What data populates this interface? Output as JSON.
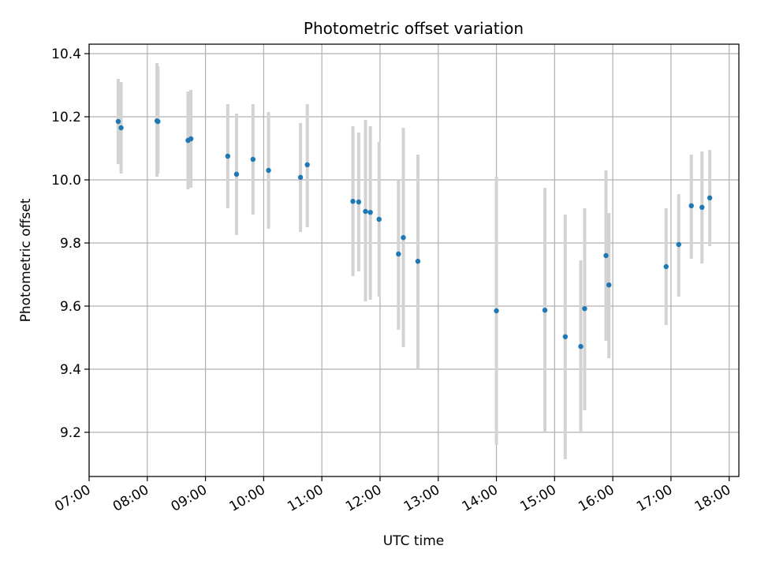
{
  "chart_data": {
    "type": "scatter",
    "title": "Photometric offset variation",
    "xlabel": "UTC time",
    "ylabel": "Photometric offset",
    "xlim": [
      "07:00",
      "18:10"
    ],
    "ylim": [
      9.06,
      10.43
    ],
    "xticks": [
      "07:00",
      "08:00",
      "09:00",
      "10:00",
      "11:00",
      "12:00",
      "13:00",
      "14:00",
      "15:00",
      "16:00",
      "17:00",
      "18:00"
    ],
    "yticks": [
      "9.2",
      "9.4",
      "9.6",
      "9.8",
      "10.0",
      "10.2",
      "10.4"
    ],
    "grid": true,
    "colors": {
      "point": "#1f77b4",
      "errorbar": "#d3d3d3",
      "grid": "#b0b0b0"
    },
    "series": [
      {
        "points": [
          {
            "t": "07:30",
            "y": 10.185,
            "lo": 10.05,
            "hi": 10.32
          },
          {
            "t": "07:33",
            "y": 10.165,
            "lo": 10.02,
            "hi": 10.31
          },
          {
            "t": "08:10",
            "y": 10.187,
            "lo": 10.01,
            "hi": 10.37
          },
          {
            "t": "08:11",
            "y": 10.185,
            "lo": 10.02,
            "hi": 10.36
          },
          {
            "t": "08:42",
            "y": 10.125,
            "lo": 9.97,
            "hi": 10.28
          },
          {
            "t": "08:45",
            "y": 10.13,
            "lo": 9.975,
            "hi": 10.285
          },
          {
            "t": "09:23",
            "y": 10.075,
            "lo": 9.91,
            "hi": 10.24
          },
          {
            "t": "09:32",
            "y": 10.018,
            "lo": 9.825,
            "hi": 10.21
          },
          {
            "t": "09:49",
            "y": 10.065,
            "lo": 9.89,
            "hi": 10.24
          },
          {
            "t": "10:05",
            "y": 10.03,
            "lo": 9.845,
            "hi": 10.215
          },
          {
            "t": "10:38",
            "y": 10.008,
            "lo": 9.835,
            "hi": 10.18
          },
          {
            "t": "10:45",
            "y": 10.048,
            "lo": 9.85,
            "hi": 10.24
          },
          {
            "t": "11:32",
            "y": 9.932,
            "lo": 9.695,
            "hi": 10.17
          },
          {
            "t": "11:38",
            "y": 9.93,
            "lo": 9.71,
            "hi": 10.15
          },
          {
            "t": "11:45",
            "y": 9.9,
            "lo": 9.615,
            "hi": 10.19
          },
          {
            "t": "11:50",
            "y": 9.897,
            "lo": 9.62,
            "hi": 10.17
          },
          {
            "t": "11:59",
            "y": 9.875,
            "lo": 9.63,
            "hi": 10.12
          },
          {
            "t": "12:19",
            "y": 9.765,
            "lo": 9.525,
            "hi": 10.0
          },
          {
            "t": "12:24",
            "y": 9.817,
            "lo": 9.47,
            "hi": 10.165
          },
          {
            "t": "12:39",
            "y": 9.742,
            "lo": 9.4,
            "hi": 10.08
          },
          {
            "t": "14:00",
            "y": 9.585,
            "lo": 9.16,
            "hi": 10.01
          },
          {
            "t": "14:50",
            "y": 9.587,
            "lo": 9.2,
            "hi": 9.975
          },
          {
            "t": "15:11",
            "y": 9.503,
            "lo": 9.115,
            "hi": 9.89
          },
          {
            "t": "15:27",
            "y": 9.472,
            "lo": 9.2,
            "hi": 9.745
          },
          {
            "t": "15:31",
            "y": 9.592,
            "lo": 9.27,
            "hi": 9.91
          },
          {
            "t": "15:53",
            "y": 9.76,
            "lo": 9.49,
            "hi": 10.03
          },
          {
            "t": "15:56",
            "y": 9.667,
            "lo": 9.435,
            "hi": 9.895
          },
          {
            "t": "16:55",
            "y": 9.725,
            "lo": 9.54,
            "hi": 9.91
          },
          {
            "t": "17:08",
            "y": 9.795,
            "lo": 9.63,
            "hi": 9.955
          },
          {
            "t": "17:21",
            "y": 9.918,
            "lo": 9.75,
            "hi": 10.08
          },
          {
            "t": "17:32",
            "y": 9.913,
            "lo": 9.735,
            "hi": 10.09
          },
          {
            "t": "17:40",
            "y": 9.943,
            "lo": 9.79,
            "hi": 10.095
          }
        ]
      }
    ]
  }
}
